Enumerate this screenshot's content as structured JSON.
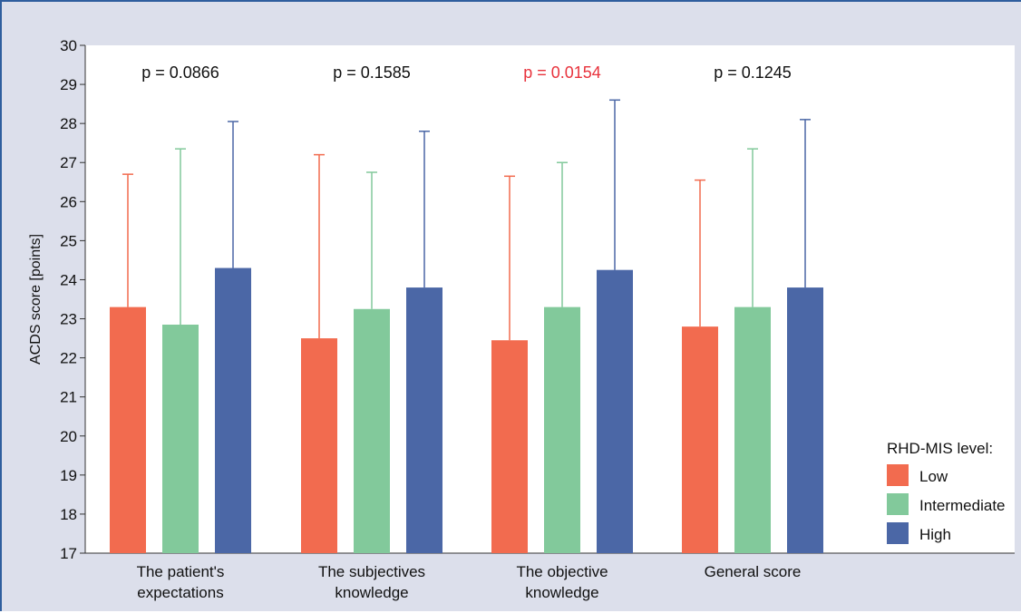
{
  "chart_data": {
    "type": "bar",
    "ylabel": "ACDS score [points]",
    "ylim": [
      17,
      30
    ],
    "yticks": [
      17,
      18,
      19,
      20,
      21,
      22,
      23,
      24,
      25,
      26,
      27,
      28,
      29,
      30
    ],
    "categories": [
      [
        "The patient's",
        "expectations"
      ],
      [
        "The subjectives",
        "knowledge"
      ],
      [
        "The objective",
        "knowledge"
      ],
      [
        "General score"
      ]
    ],
    "legend_title": "RHD-MIS level:",
    "legend_placement": "bottom-right",
    "series": [
      {
        "name": "Low",
        "color": "#f26b4f",
        "values": [
          23.3,
          22.5,
          22.45,
          22.8
        ],
        "error_upper": [
          26.7,
          27.2,
          26.65,
          26.55
        ]
      },
      {
        "name": "Intermediate",
        "color": "#82c99b",
        "values": [
          22.85,
          23.25,
          23.3,
          23.3
        ],
        "error_upper": [
          27.35,
          26.75,
          27.0,
          27.35
        ]
      },
      {
        "name": "High",
        "color": "#4b67a6",
        "values": [
          24.3,
          23.8,
          24.25,
          23.8
        ],
        "error_upper": [
          28.05,
          27.8,
          28.6,
          28.1
        ]
      }
    ],
    "p_values": [
      {
        "text": "p = 0.0866",
        "color": "#111111"
      },
      {
        "text": "p = 0.1585",
        "color": "#111111"
      },
      {
        "text": "p = 0.0154",
        "color": "#e8323c"
      },
      {
        "text": "p = 0.1245",
        "color": "#111111"
      }
    ],
    "grid": false
  }
}
